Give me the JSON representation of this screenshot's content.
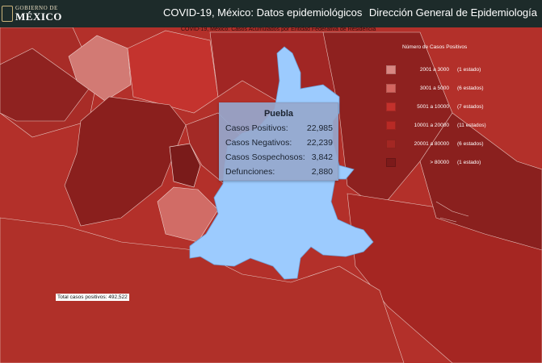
{
  "header": {
    "logo_line1": "GOBIERNO DE",
    "logo_line2": "MÉXICO",
    "app_title": "COVID-19, México: Datos epidemiológicos",
    "dept_title": "Dirección General de Epidemiología"
  },
  "map": {
    "subtitle": "COVID-19, México: Casos Acumulados por Entidad Federativa de Residencia",
    "total_label": "Total casos positivos: 492,522"
  },
  "legend": {
    "title": "Número de Casos Positivos",
    "items": [
      {
        "range": "2001 a   3000",
        "count": "(1 estado)",
        "color": "#d98782"
      },
      {
        "range": "3001 a   5000",
        "count": "(6 estados)",
        "color": "#d46660"
      },
      {
        "range": "5001 a  10000",
        "count": "(7 estados)",
        "color": "#c3312c"
      },
      {
        "range": "10001 a  20000",
        "count": "(11 estados)",
        "color": "#b82a25"
      },
      {
        "range": "20001 a  80000",
        "count": "(6 estados)",
        "color": "#a32723"
      },
      {
        "range": "> 80000",
        "count": "(1 estado)",
        "color": "#7c1a1a"
      }
    ]
  },
  "tooltip": {
    "state": "Puebla",
    "rows": [
      {
        "label": "Casos Positivos:",
        "value": "22,985"
      },
      {
        "label": "Casos Negativos:",
        "value": "22,239"
      },
      {
        "label": "Casos Sospechosos:",
        "value": "3,842"
      },
      {
        "label": "Defunciones:",
        "value": "2,880"
      }
    ]
  },
  "colors": {
    "header_bg": "#1d2b2a",
    "highlight_state": "#9ccbfe",
    "base_state": "#b3302a"
  }
}
